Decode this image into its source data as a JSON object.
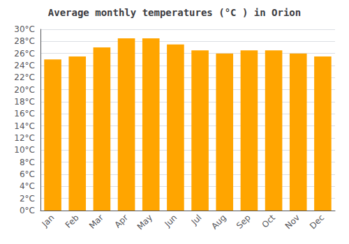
{
  "chart_data": {
    "type": "bar",
    "title": "Average monthly temperatures (°C ) in Orion",
    "categories": [
      "Jan",
      "Feb",
      "Mar",
      "Apr",
      "May",
      "Jun",
      "Jul",
      "Aug",
      "Sep",
      "Oct",
      "Nov",
      "Dec"
    ],
    "values": [
      25.0,
      25.5,
      27.0,
      28.5,
      28.5,
      27.5,
      26.5,
      26.0,
      26.5,
      26.5,
      26.0,
      25.5
    ],
    "color": "#FFA500",
    "ylim": [
      0,
      30
    ],
    "yticks": [
      {
        "value": 0,
        "label": "0°C"
      },
      {
        "value": 2,
        "label": "2°C"
      },
      {
        "value": 4,
        "label": "4°C"
      },
      {
        "value": 6,
        "label": "6°C"
      },
      {
        "value": 8,
        "label": "8°C"
      },
      {
        "value": 10,
        "label": "10°C"
      },
      {
        "value": 12,
        "label": "12°C"
      },
      {
        "value": 14,
        "label": "14°C"
      },
      {
        "value": 16,
        "label": "16°C"
      },
      {
        "value": 18,
        "label": "18°C"
      },
      {
        "value": 20,
        "label": "20°C"
      },
      {
        "value": 22,
        "label": "22°C"
      },
      {
        "value": 24,
        "label": "24°C"
      },
      {
        "value": 26,
        "label": "26°C"
      },
      {
        "value": 28,
        "label": "28°C"
      },
      {
        "value": 30,
        "label": "30°C"
      }
    ],
    "grid": true
  }
}
